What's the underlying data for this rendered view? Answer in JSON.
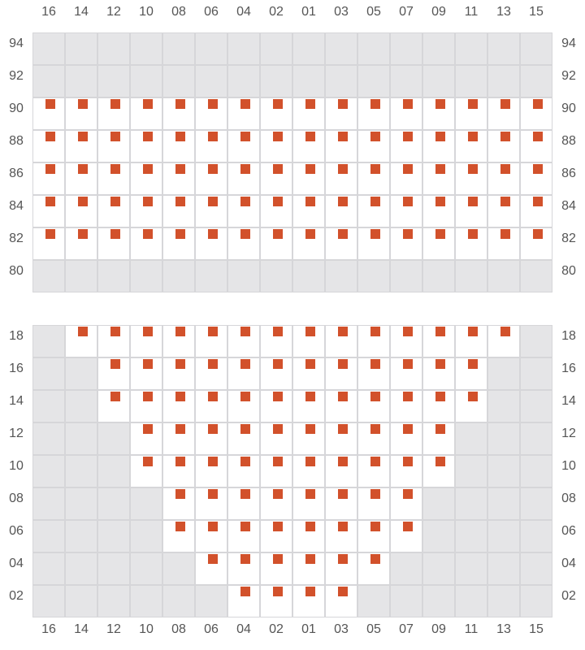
{
  "colors": {
    "seat": "#d2512b",
    "open_cell": "#ffffff",
    "blocked_cell": "#e5e5e7",
    "grid": "#d6d6d9"
  },
  "columns": [
    "16",
    "14",
    "12",
    "10",
    "08",
    "06",
    "04",
    "02",
    "01",
    "03",
    "05",
    "07",
    "09",
    "11",
    "13",
    "15"
  ],
  "sections": [
    {
      "rows": [
        {
          "label": "94",
          "open": []
        },
        {
          "label": "92",
          "open": []
        },
        {
          "label": "90",
          "open": [
            "16",
            "14",
            "12",
            "10",
            "08",
            "06",
            "04",
            "02",
            "01",
            "03",
            "05",
            "07",
            "09",
            "11",
            "13",
            "15"
          ]
        },
        {
          "label": "88",
          "open": [
            "16",
            "14",
            "12",
            "10",
            "08",
            "06",
            "04",
            "02",
            "01",
            "03",
            "05",
            "07",
            "09",
            "11",
            "13",
            "15"
          ]
        },
        {
          "label": "86",
          "open": [
            "16",
            "14",
            "12",
            "10",
            "08",
            "06",
            "04",
            "02",
            "01",
            "03",
            "05",
            "07",
            "09",
            "11",
            "13",
            "15"
          ]
        },
        {
          "label": "84",
          "open": [
            "16",
            "14",
            "12",
            "10",
            "08",
            "06",
            "04",
            "02",
            "01",
            "03",
            "05",
            "07",
            "09",
            "11",
            "13",
            "15"
          ]
        },
        {
          "label": "82",
          "open": [
            "16",
            "14",
            "12",
            "10",
            "08",
            "06",
            "04",
            "02",
            "01",
            "03",
            "05",
            "07",
            "09",
            "11",
            "13",
            "15"
          ]
        },
        {
          "label": "80",
          "open": []
        }
      ]
    },
    {
      "rows": [
        {
          "label": "18",
          "open": [
            "14",
            "12",
            "10",
            "08",
            "06",
            "04",
            "02",
            "01",
            "03",
            "05",
            "07",
            "09",
            "11",
            "13"
          ]
        },
        {
          "label": "16",
          "open": [
            "12",
            "10",
            "08",
            "06",
            "04",
            "02",
            "01",
            "03",
            "05",
            "07",
            "09",
            "11"
          ]
        },
        {
          "label": "14",
          "open": [
            "12",
            "10",
            "08",
            "06",
            "04",
            "02",
            "01",
            "03",
            "05",
            "07",
            "09",
            "11"
          ]
        },
        {
          "label": "12",
          "open": [
            "10",
            "08",
            "06",
            "04",
            "02",
            "01",
            "03",
            "05",
            "07",
            "09"
          ]
        },
        {
          "label": "10",
          "open": [
            "10",
            "08",
            "06",
            "04",
            "02",
            "01",
            "03",
            "05",
            "07",
            "09"
          ]
        },
        {
          "label": "08",
          "open": [
            "08",
            "06",
            "04",
            "02",
            "01",
            "03",
            "05",
            "07"
          ]
        },
        {
          "label": "06",
          "open": [
            "08",
            "06",
            "04",
            "02",
            "01",
            "03",
            "05",
            "07"
          ]
        },
        {
          "label": "04",
          "open": [
            "06",
            "04",
            "02",
            "01",
            "03",
            "05"
          ]
        },
        {
          "label": "02",
          "open": [
            "04",
            "02",
            "01",
            "03"
          ]
        }
      ]
    }
  ]
}
